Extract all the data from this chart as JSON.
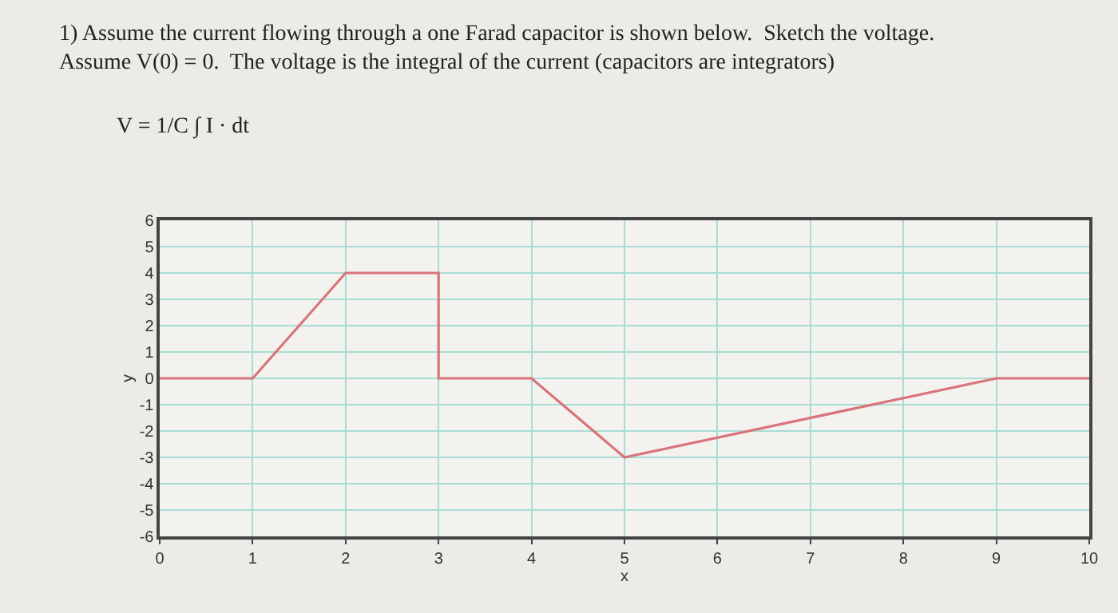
{
  "chart_data": {
    "type": "line",
    "title": "1) Assume the current flowing through a one Farad capacitor is shown below.  Sketch the voltage.\nAssume V(0) = 0.  The voltage is the integral of the current (capacitors are integrators)",
    "subtitle": "V = 1/C ∫ I · dt",
    "xlabel": "x",
    "ylabel": "y",
    "series": [
      {
        "color": "#d9737a",
        "x": [
          0,
          1,
          2,
          3,
          3,
          4,
          5,
          9,
          10
        ],
        "values": [
          0,
          0,
          4,
          4,
          0,
          0,
          -3,
          0,
          0
        ]
      }
    ],
    "xlim": [
      0,
      10
    ],
    "xticks": [
      0,
      1,
      2,
      3,
      4,
      5,
      6,
      7,
      8,
      9,
      10
    ],
    "ylim": [
      -6,
      6
    ],
    "yticks": [
      -6,
      -5,
      -4,
      -3,
      -2,
      -1,
      0,
      1,
      2,
      3,
      4,
      5,
      6
    ],
    "grid": true,
    "marker": "none",
    "line_style": "solid"
  }
}
